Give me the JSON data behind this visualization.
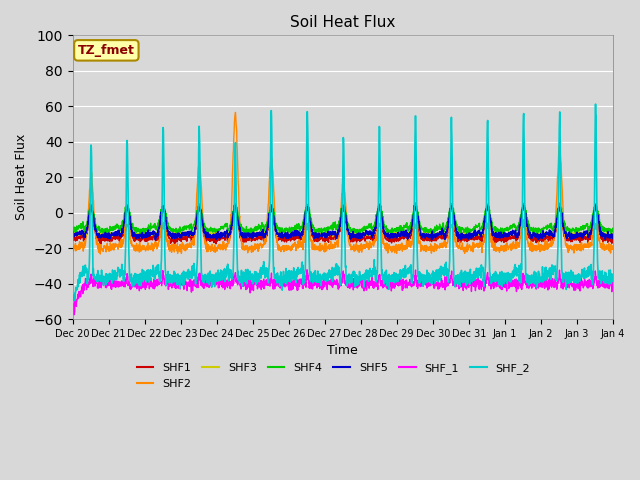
{
  "title": "Soil Heat Flux",
  "ylabel": "Soil Heat Flux",
  "xlabel": "Time",
  "ylim": [
    -60,
    100
  ],
  "yticks": [
    -60,
    -40,
    -20,
    0,
    20,
    40,
    60,
    80,
    100
  ],
  "background_color": "#d8d8d8",
  "plot_bg_color": "#d8d8d8",
  "series": {
    "SHF1": {
      "color": "#cc0000",
      "lw": 1.0
    },
    "SHF2": {
      "color": "#ff8800",
      "lw": 1.0
    },
    "SHF3": {
      "color": "#cccc00",
      "lw": 1.0
    },
    "SHF4": {
      "color": "#00cc00",
      "lw": 1.0
    },
    "SHF5": {
      "color": "#0000cc",
      "lw": 1.2
    },
    "SHF_1": {
      "color": "#ff00ff",
      "lw": 1.0
    },
    "SHF_2": {
      "color": "#00cccc",
      "lw": 1.2
    }
  },
  "annotation_text": "TZ_fmet",
  "annotation_color": "#8b0000",
  "annotation_bg": "#ffffaa",
  "n_days": 15,
  "start_day": 20
}
